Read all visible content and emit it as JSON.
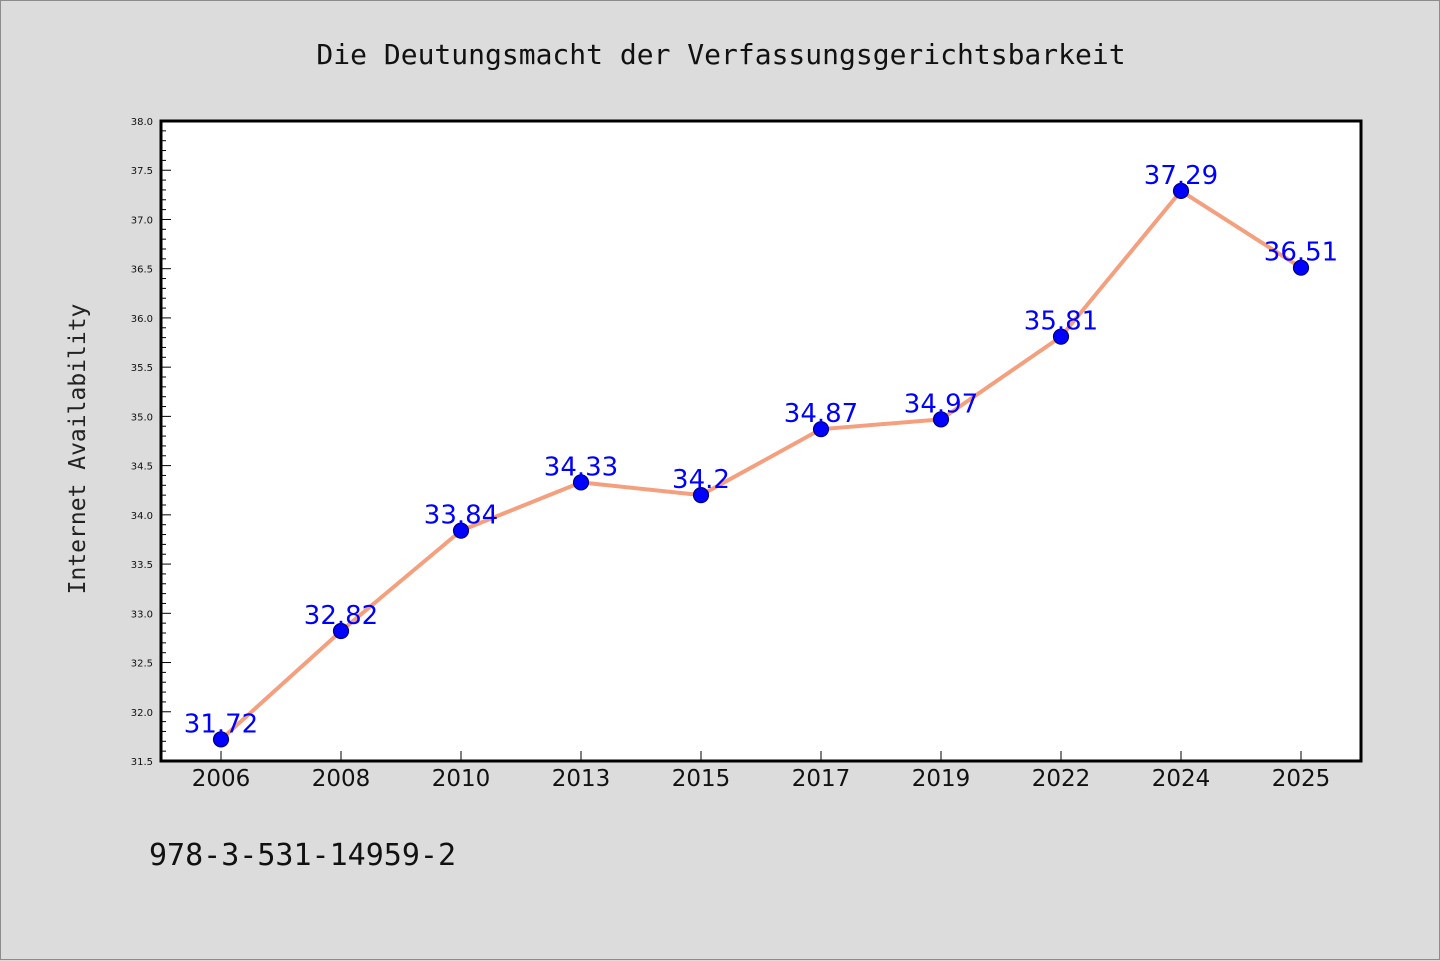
{
  "chart_data": {
    "type": "line",
    "title": "Die Deutungsmacht der Verfassungsgerichtsbarkeit",
    "xlabel": "",
    "ylabel": "Internet Availability",
    "categories": [
      "2006",
      "2008",
      "2010",
      "2013",
      "2015",
      "2017",
      "2019",
      "2022",
      "2024",
      "2025"
    ],
    "values": [
      31.72,
      32.82,
      33.84,
      34.33,
      34.2,
      34.87,
      34.97,
      35.81,
      37.29,
      36.51
    ],
    "data_labels": [
      "31.72",
      "32.82",
      "33.84",
      "34.33",
      "34.2",
      "34.87",
      "34.97",
      "35.81",
      "37.29",
      "36.51"
    ],
    "ylim": [
      31.5,
      38.0
    ],
    "y_ticks": [
      "31.5",
      "32.0",
      "32.5",
      "33.0",
      "33.5",
      "34.0",
      "34.5",
      "35.0",
      "35.5",
      "36.0",
      "36.5",
      "37.0",
      "37.5",
      "38.0"
    ],
    "y_minor_step": 0.1,
    "grid": false,
    "legend": "none",
    "colors": {
      "line": "#f4a07e",
      "marker": "#0000ff",
      "label": "#0000ff",
      "plot_background": "#ffffff",
      "page_background": "#dcdcdc"
    }
  },
  "footer": {
    "isbn": "978-3-531-14959-2"
  }
}
